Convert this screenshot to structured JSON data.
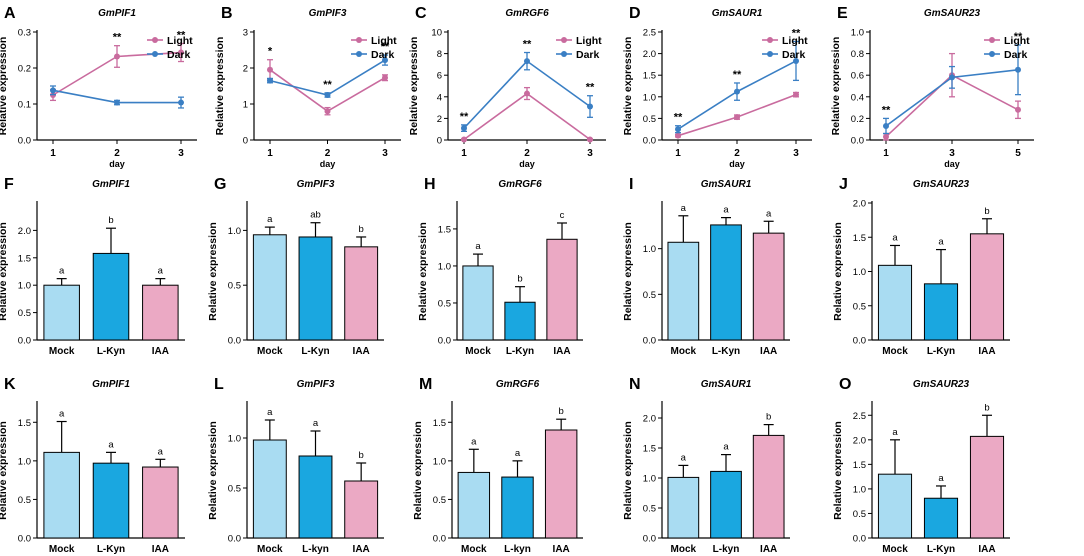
{
  "colors": {
    "light": "#c96b9e",
    "dark": "#3a7fc4",
    "mock": "#a9dcf2",
    "lkyn": "#1aa7e0",
    "iaa": "#eba9c4",
    "axis": "#000000"
  },
  "chart_data": [
    {
      "type": "line",
      "letter": "A",
      "title": "GmPIF1",
      "xlabel": "day",
      "ylabel": "Relative expression",
      "x": [
        "1",
        "2",
        "3"
      ],
      "ylim": [
        0,
        0.3
      ],
      "yticks": [
        "0.0",
        "0.1",
        "0.2",
        "0.3"
      ],
      "series": [
        {
          "name": "Light",
          "values": [
            0.125,
            0.232,
            0.243
          ],
          "errors": [
            0.015,
            0.03,
            0.025
          ]
        },
        {
          "name": "Dark",
          "values": [
            0.138,
            0.104,
            0.104
          ],
          "errors": [
            0.012,
            0.006,
            0.015
          ]
        }
      ],
      "annotations": [
        "",
        "**",
        "**"
      ],
      "legend": "top-right"
    },
    {
      "type": "line",
      "letter": "B",
      "title": "GmPIF3",
      "xlabel": "day",
      "ylabel": "Relative expression",
      "x": [
        "1",
        "2",
        "3"
      ],
      "ylim": [
        0,
        3
      ],
      "yticks": [
        "0",
        "1",
        "2",
        "3"
      ],
      "series": [
        {
          "name": "Light",
          "values": [
            1.95,
            0.8,
            1.73
          ],
          "errors": [
            0.28,
            0.1,
            0.08
          ]
        },
        {
          "name": "Dark",
          "values": [
            1.65,
            1.25,
            2.22
          ],
          "errors": [
            0.06,
            0.06,
            0.14
          ]
        }
      ],
      "annotations": [
        "*",
        "**",
        "**"
      ],
      "legend": "top-right"
    },
    {
      "type": "line",
      "letter": "C",
      "title": "GmRGF6",
      "xlabel": "day",
      "ylabel": "Relative expression",
      "x": [
        "1",
        "2",
        "3"
      ],
      "ylim": [
        0,
        10
      ],
      "yticks": [
        "0",
        "2",
        "4",
        "6",
        "8",
        "10"
      ],
      "series": [
        {
          "name": "Light",
          "values": [
            0.05,
            4.3,
            0.05
          ],
          "errors": [
            0.05,
            0.55,
            0.05
          ]
        },
        {
          "name": "Dark",
          "values": [
            1.1,
            7.3,
            3.1
          ],
          "errors": [
            0.3,
            0.8,
            1.0
          ]
        }
      ],
      "annotations": [
        "**",
        "**",
        "**"
      ],
      "legend": "top-right"
    },
    {
      "type": "line",
      "letter": "D",
      "title": "GmSAUR1",
      "xlabel": "day",
      "ylabel": "Relative expression",
      "x": [
        "1",
        "2",
        "3"
      ],
      "ylim": [
        0,
        2.5
      ],
      "yticks": [
        "0.0",
        "0.5",
        "1.0",
        "1.5",
        "2.0",
        "2.5"
      ],
      "series": [
        {
          "name": "Light",
          "values": [
            0.1,
            0.53,
            1.05
          ],
          "errors": [
            0.03,
            0.05,
            0.05
          ]
        },
        {
          "name": "Dark",
          "values": [
            0.25,
            1.12,
            1.83
          ],
          "errors": [
            0.08,
            0.2,
            0.45
          ]
        }
      ],
      "annotations": [
        "**",
        "**",
        "**"
      ],
      "legend": "top-right"
    },
    {
      "type": "line",
      "letter": "E",
      "title": "GmSAUR23",
      "xlabel": "day",
      "ylabel": "Relative expression",
      "x": [
        "1",
        "3",
        "5"
      ],
      "ylim": [
        0,
        1.0
      ],
      "yticks": [
        "0.0",
        "0.2",
        "0.4",
        "0.6",
        "0.8",
        "1.0"
      ],
      "series": [
        {
          "name": "Light",
          "values": [
            0.03,
            0.6,
            0.28
          ],
          "errors": [
            0.03,
            0.2,
            0.08
          ]
        },
        {
          "name": "Dark",
          "values": [
            0.13,
            0.58,
            0.65
          ],
          "errors": [
            0.07,
            0.1,
            0.23
          ]
        }
      ],
      "annotations": [
        "**",
        "",
        "**"
      ],
      "legend": "top-right"
    },
    {
      "type": "bar",
      "letter": "F",
      "title": "GmPIF1",
      "ylabel": "Relative expression",
      "categories": [
        "Mock",
        "L-Kyn",
        "IAA"
      ],
      "values": [
        1.0,
        1.58,
        1.0
      ],
      "errors": [
        0.12,
        0.46,
        0.12
      ],
      "ylim": [
        0,
        2.5
      ],
      "yticks": [
        "0.0",
        "0.5",
        "1.0",
        "1.5",
        "2.0"
      ],
      "sig": [
        "a",
        "b",
        "a"
      ]
    },
    {
      "type": "bar",
      "letter": "G",
      "title": "GmPIF3",
      "ylabel": "Relative expression",
      "categories": [
        "Mock",
        "L-Kyn",
        "IAA"
      ],
      "values": [
        0.96,
        0.94,
        0.85
      ],
      "errors": [
        0.07,
        0.13,
        0.09
      ],
      "ylim": [
        0,
        1.25
      ],
      "yticks": [
        "0.0",
        "0.5",
        "1.0"
      ],
      "sig": [
        "a",
        "ab",
        "b"
      ]
    },
    {
      "type": "bar",
      "letter": "H",
      "title": "GmRGF6",
      "ylabel": "Relative expression",
      "categories": [
        "Mock",
        "L-Kyn",
        "IAA"
      ],
      "values": [
        1.0,
        0.51,
        1.36
      ],
      "errors": [
        0.16,
        0.21,
        0.22
      ],
      "ylim": [
        0,
        1.85
      ],
      "yticks": [
        "0.0",
        "0.5",
        "1.0",
        "1.5"
      ],
      "sig": [
        "a",
        "b",
        "c"
      ]
    },
    {
      "type": "bar",
      "letter": "I",
      "title": "GmSAUR1",
      "ylabel": "Relative expression",
      "categories": [
        "Mock",
        "L-Kyn",
        "IAA"
      ],
      "values": [
        1.07,
        1.26,
        1.17
      ],
      "errors": [
        0.29,
        0.08,
        0.13
      ],
      "ylim": [
        0,
        1.5
      ],
      "yticks": [
        "0.0",
        "0.5",
        "1.0"
      ],
      "sig": [
        "a",
        "a",
        "a"
      ]
    },
    {
      "type": "bar",
      "letter": "J",
      "title": "GmSAUR23",
      "ylabel": "Relative expression",
      "categories": [
        "Mock",
        "L-Kyn",
        "IAA"
      ],
      "values": [
        1.09,
        0.82,
        1.55
      ],
      "errors": [
        0.29,
        0.5,
        0.22
      ],
      "ylim": [
        0,
        2.0
      ],
      "yticks": [
        "0.0",
        "0.5",
        "1.0",
        "1.5",
        "2.0"
      ],
      "sig": [
        "a",
        "a",
        "b"
      ]
    },
    {
      "type": "bar",
      "letter": "K",
      "title": "GmPIF1",
      "ylabel": "Relative expression",
      "categories": [
        "Mock",
        "L-Kyn",
        "IAA"
      ],
      "values": [
        1.11,
        0.97,
        0.92
      ],
      "errors": [
        0.4,
        0.14,
        0.1
      ],
      "ylim": [
        0,
        1.75
      ],
      "yticks": [
        "0.0",
        "0.5",
        "1.0",
        "1.5"
      ],
      "sig": [
        "a",
        "a",
        "a"
      ]
    },
    {
      "type": "bar",
      "letter": "L",
      "title": "GmPIF3",
      "ylabel": "Relative expression",
      "categories": [
        "Mock",
        "L-kyn",
        "IAA"
      ],
      "values": [
        0.98,
        0.82,
        0.57
      ],
      "errors": [
        0.2,
        0.25,
        0.18
      ],
      "ylim": [
        0,
        1.35
      ],
      "yticks": [
        "0.0",
        "0.5",
        "1.0"
      ],
      "sig": [
        "a",
        "a",
        "b"
      ]
    },
    {
      "type": "bar",
      "letter": "M",
      "title": "GmRGF6",
      "ylabel": "Relative expression",
      "categories": [
        "Mock",
        "L-kyn",
        "IAA"
      ],
      "values": [
        0.85,
        0.79,
        1.4
      ],
      "errors": [
        0.3,
        0.21,
        0.14
      ],
      "ylim": [
        0,
        1.75
      ],
      "yticks": [
        "0.0",
        "0.5",
        "1.0",
        "1.5"
      ],
      "sig": [
        "a",
        "a",
        "b"
      ]
    },
    {
      "type": "bar",
      "letter": "N",
      "title": "GmSAUR1",
      "ylabel": "Relative expression",
      "categories": [
        "Mock",
        "L-kyn",
        "IAA"
      ],
      "values": [
        1.01,
        1.11,
        1.71
      ],
      "errors": [
        0.2,
        0.28,
        0.18
      ],
      "ylim": [
        0,
        2.25
      ],
      "yticks": [
        "0.0",
        "0.5",
        "1.0",
        "1.5",
        "2.0"
      ],
      "sig": [
        "a",
        "a",
        "b"
      ]
    },
    {
      "type": "bar",
      "letter": "O",
      "title": "GmSAUR23",
      "ylabel": "Relative expression",
      "categories": [
        "Mock",
        "L-Kyn",
        "IAA"
      ],
      "values": [
        1.3,
        0.81,
        2.07
      ],
      "errors": [
        0.7,
        0.25,
        0.43
      ],
      "ylim": [
        0,
        2.75
      ],
      "yticks": [
        "0.0",
        "0.5",
        "1.0",
        "1.5",
        "2.0",
        "2.5"
      ],
      "sig": [
        "a",
        "a",
        "b"
      ]
    }
  ]
}
